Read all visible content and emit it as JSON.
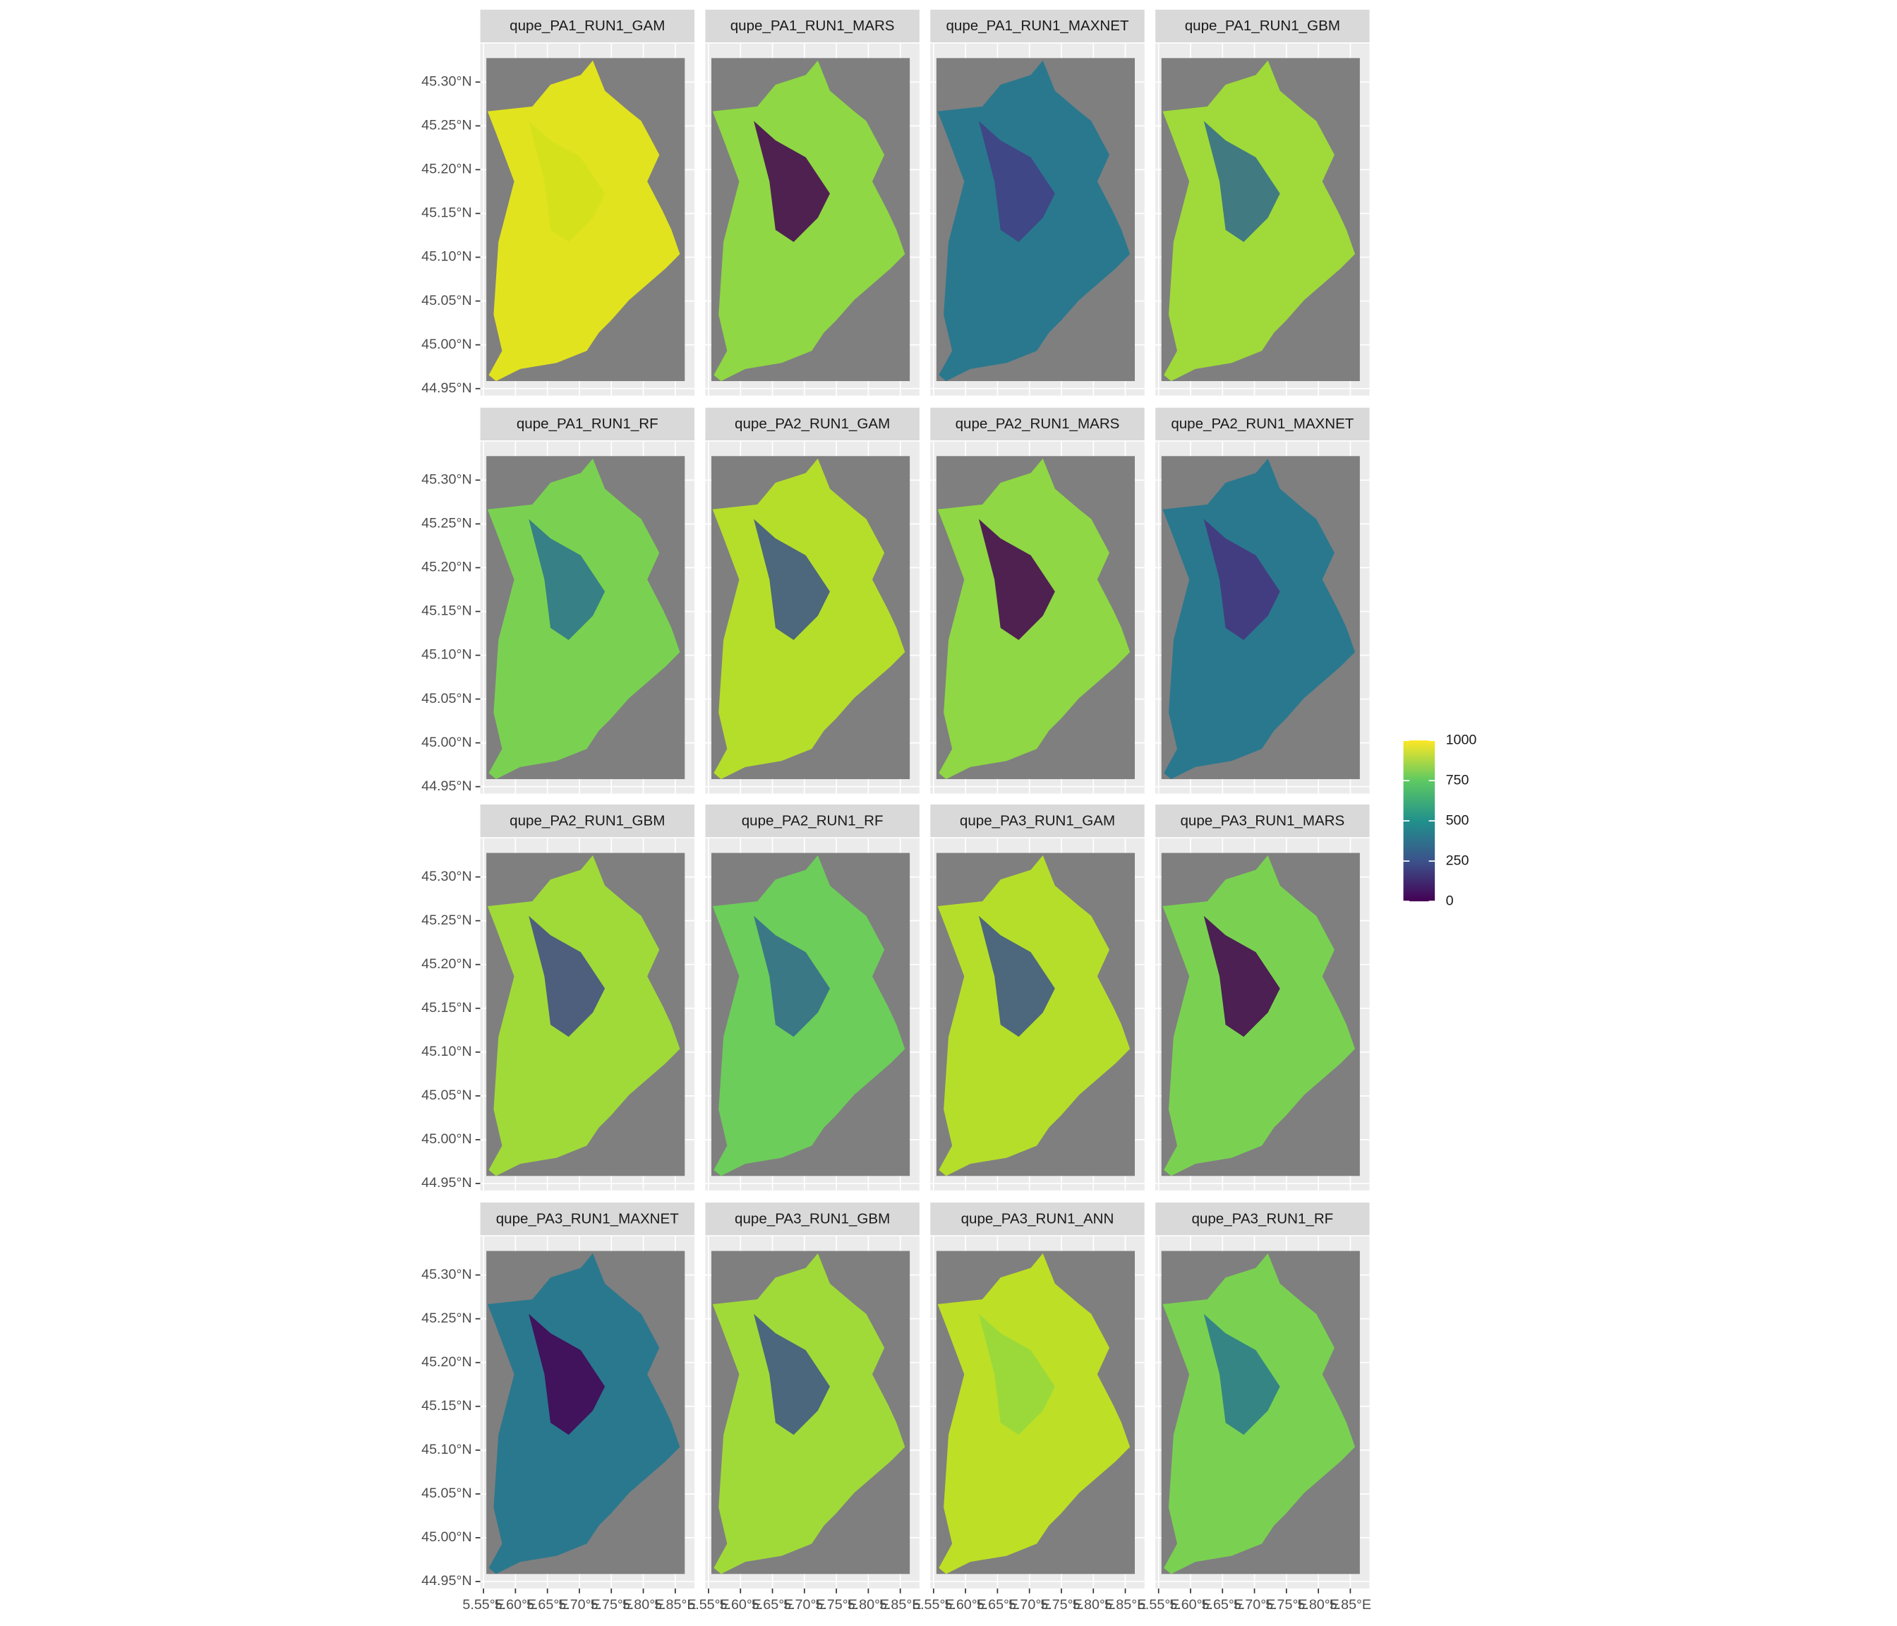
{
  "chart_data": {
    "type": "raster-facets",
    "panels": [
      {
        "name": "qupe_PA1_RUN1_GAM",
        "color": "#e1e31f",
        "low_color": "#d2e21b"
      },
      {
        "name": "qupe_PA1_RUN1_MARS",
        "color": "#8fd744",
        "low_color": "#440154"
      },
      {
        "name": "qupe_PA1_RUN1_MAXNET",
        "color": "#2a788e",
        "low_color": "#433e85"
      },
      {
        "name": "qupe_PA1_RUN1_GBM",
        "color": "#9fda3a",
        "low_color": "#31688e"
      },
      {
        "name": "qupe_PA1_RUN1_RF",
        "color": "#7ad151",
        "low_color": "#2c728e"
      },
      {
        "name": "qupe_PA2_RUN1_GAM",
        "color": "#b5de2b",
        "low_color": "#3b528b"
      },
      {
        "name": "qupe_PA2_RUN1_MARS",
        "color": "#8fd744",
        "low_color": "#440154"
      },
      {
        "name": "qupe_PA2_RUN1_MAXNET",
        "color": "#2a788e",
        "low_color": "#46327e"
      },
      {
        "name": "qupe_PA2_RUN1_GBM",
        "color": "#a0da39",
        "low_color": "#3e4989"
      },
      {
        "name": "qupe_PA2_RUN1_RF",
        "color": "#6ccd5a",
        "low_color": "#31688e"
      },
      {
        "name": "qupe_PA3_RUN1_GAM",
        "color": "#b5de2b",
        "low_color": "#3b528b"
      },
      {
        "name": "qupe_PA3_RUN1_MARS",
        "color": "#7ad151",
        "low_color": "#440154"
      },
      {
        "name": "qupe_PA3_RUN1_MAXNET",
        "color": "#2a788e",
        "low_color": "#440154"
      },
      {
        "name": "qupe_PA3_RUN1_GBM",
        "color": "#a0da39",
        "low_color": "#3b528b"
      },
      {
        "name": "qupe_PA3_RUN1_ANN",
        "color": "#bddf26",
        "low_color": "#95d840"
      },
      {
        "name": "qupe_PA3_RUN1_RF",
        "color": "#7ad151",
        "low_color": "#2a788e"
      }
    ],
    "xlim": [
      5.545,
      5.88
    ],
    "xticks": [
      {
        "value": 5.55,
        "label": "5.55°E"
      },
      {
        "value": 5.6,
        "label": "5.60°E"
      },
      {
        "value": 5.65,
        "label": "5.65°E"
      },
      {
        "value": 5.7,
        "label": "5.70°E"
      },
      {
        "value": 5.75,
        "label": "5.75°E"
      },
      {
        "value": 5.8,
        "label": "5.80°E"
      },
      {
        "value": 5.85,
        "label": "5.85°E"
      }
    ],
    "ylim": [
      44.942,
      45.344
    ],
    "yticks": [
      {
        "value": 44.95,
        "label": "44.95°N"
      },
      {
        "value": 45.0,
        "label": "45.00°N"
      },
      {
        "value": 45.05,
        "label": "45.05°N"
      },
      {
        "value": 45.1,
        "label": "45.10°N"
      },
      {
        "value": 45.15,
        "label": "45.15°N"
      },
      {
        "value": 45.2,
        "label": "45.20°N"
      },
      {
        "value": 45.25,
        "label": "45.25°N"
      },
      {
        "value": 45.3,
        "label": "45.30°N"
      }
    ],
    "grid": true,
    "colorbar": {
      "lim": [
        0,
        1000
      ],
      "ticks": [
        0,
        250,
        500,
        750,
        1000
      ],
      "colors": [
        "#440154",
        "#3b528b",
        "#21918c",
        "#5ec962",
        "#fde725"
      ]
    }
  }
}
